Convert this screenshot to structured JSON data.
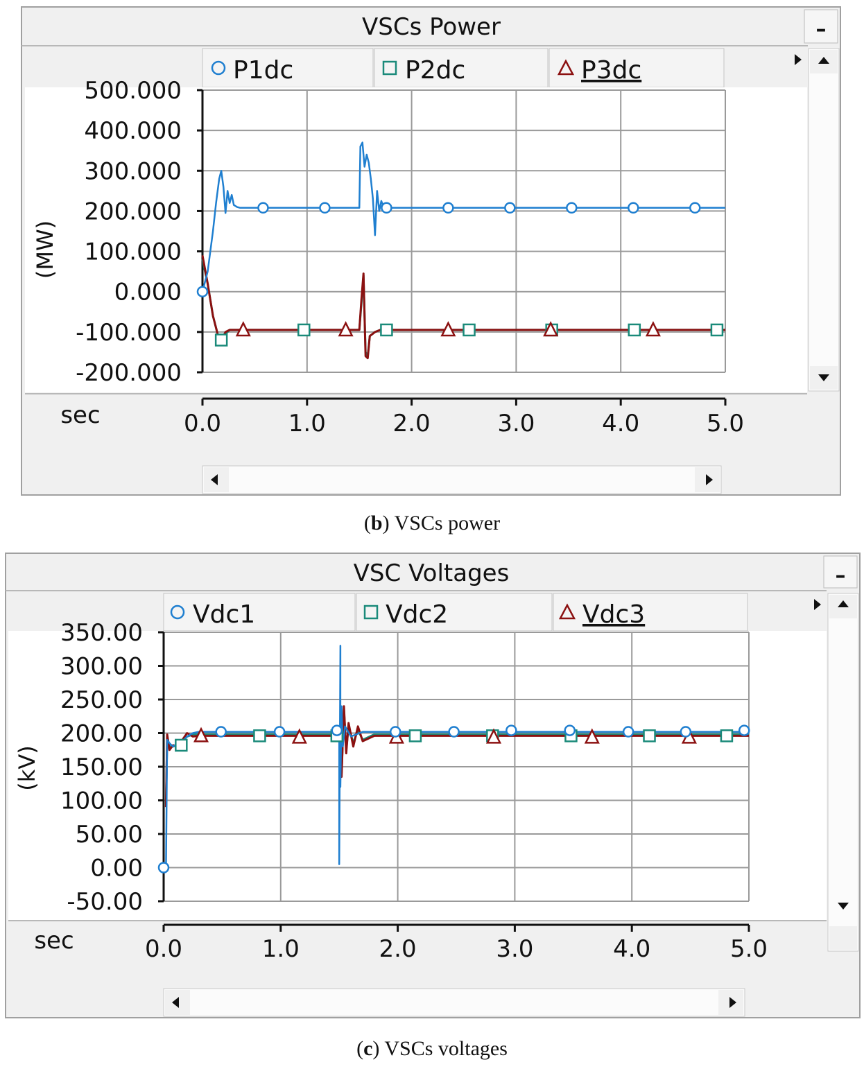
{
  "panels": [
    {
      "title": "VSCs  Power",
      "minimize_label": "–",
      "ylabel": "(MW)",
      "xunit": "sec",
      "caption_letter": "b",
      "caption_text": " VSCs power",
      "legend": [
        {
          "label": "P1dc",
          "marker": "circle",
          "color": "#1f7fd0"
        },
        {
          "label": "P2dc",
          "marker": "square",
          "color": "#1a8a7a"
        },
        {
          "label": "P3dc",
          "marker": "triangle",
          "color": "#8b1010"
        }
      ]
    },
    {
      "title": "VSC Voltages",
      "minimize_label": "–",
      "ylabel": "(kV)",
      "xunit": "sec",
      "caption_letter": "c",
      "caption_text": " VSCs voltages",
      "legend": [
        {
          "label": "Vdc1",
          "marker": "circle",
          "color": "#1f7fd0"
        },
        {
          "label": "Vdc2",
          "marker": "square",
          "color": "#1a8a7a"
        },
        {
          "label": "Vdc3",
          "marker": "triangle",
          "color": "#8b1010"
        }
      ]
    }
  ],
  "chart_data": [
    {
      "type": "line",
      "title": "VSCs  Power",
      "xlabel": "sec",
      "ylabel": "(MW)",
      "xlim": [
        0,
        5
      ],
      "ylim": [
        -200,
        500
      ],
      "xticks": [
        0,
        1,
        2,
        3,
        4,
        5
      ],
      "xtick_labels": [
        "0.0",
        "1.0",
        "2.0",
        "3.0",
        "4.0",
        "5.0"
      ],
      "yticks": [
        500,
        400,
        300,
        200,
        100,
        0,
        -100,
        -200
      ],
      "ytick_labels": [
        "500.000",
        "400.000",
        "300.000",
        "200.000",
        "100.000",
        "0.000",
        "-100.000",
        "-200.000"
      ],
      "grid": true,
      "series": [
        {
          "name": "P1dc",
          "color": "#1f7fd0",
          "marker": "circle",
          "x": [
            0,
            0.05,
            0.1,
            0.13,
            0.16,
            0.18,
            0.2,
            0.22,
            0.24,
            0.26,
            0.28,
            0.3,
            0.33,
            0.36,
            1.5,
            1.51,
            1.53,
            1.55,
            1.57,
            1.59,
            1.61,
            1.63,
            1.65,
            1.67,
            1.69,
            1.71,
            1.74,
            1.78,
            5
          ],
          "y": [
            0,
            50,
            150,
            220,
            280,
            300,
            260,
            195,
            250,
            220,
            240,
            215,
            210,
            208,
            208,
            360,
            370,
            310,
            340,
            320,
            280,
            230,
            140,
            250,
            200,
            225,
            205,
            208,
            208
          ],
          "marker_x": [
            0,
            0.58,
            1.17,
            1.76,
            2.35,
            2.94,
            3.53,
            4.12,
            4.71
          ],
          "marker_y": [
            0,
            208,
            208,
            208,
            208,
            208,
            208,
            208,
            208
          ]
        },
        {
          "name": "P2dc",
          "color": "#1a8a7a",
          "marker": "square",
          "x": [
            0,
            0.05,
            0.1,
            0.15,
            0.18,
            0.22,
            0.26,
            0.3,
            1.5,
            1.52,
            1.54,
            1.56,
            1.58,
            1.6,
            1.65,
            1.7,
            5
          ],
          "y": [
            80,
            20,
            -60,
            -110,
            -125,
            -105,
            -95,
            -95,
            -95,
            -30,
            40,
            -150,
            -160,
            -110,
            -100,
            -95,
            -95
          ],
          "marker_x": [
            0.18,
            0.97,
            1.76,
            2.55,
            3.34,
            4.13,
            4.92
          ],
          "marker_y": [
            -120,
            -95,
            -95,
            -95,
            -95,
            -95,
            -95
          ]
        },
        {
          "name": "P3dc",
          "color": "#8b1010",
          "marker": "triangle",
          "x": [
            0,
            0.05,
            0.1,
            0.15,
            0.18,
            0.22,
            0.26,
            0.3,
            1.5,
            1.52,
            1.54,
            1.56,
            1.58,
            1.6,
            1.65,
            1.7,
            5
          ],
          "y": [
            90,
            20,
            -60,
            -110,
            -120,
            -100,
            -95,
            -95,
            -95,
            -20,
            45,
            -160,
            -165,
            -110,
            -100,
            -95,
            -95
          ],
          "marker_x": [
            0.39,
            1.37,
            2.35,
            3.33,
            4.31
          ],
          "marker_y": [
            -95,
            -95,
            -95,
            -95,
            -95
          ]
        }
      ]
    },
    {
      "type": "line",
      "title": "VSC Voltages",
      "xlabel": "sec",
      "ylabel": "(kV)",
      "xlim": [
        0,
        5
      ],
      "ylim": [
        -50,
        350
      ],
      "xticks": [
        0,
        1,
        2,
        3,
        4,
        5
      ],
      "xtick_labels": [
        "0.0",
        "1.0",
        "2.0",
        "3.0",
        "4.0",
        "5.0"
      ],
      "yticks": [
        350,
        300,
        250,
        200,
        150,
        100,
        50,
        0,
        -50
      ],
      "ytick_labels": [
        "350.00",
        "300.00",
        "250.00",
        "200.00",
        "150.00",
        "100.00",
        "50.00",
        "0.00",
        "-50.00"
      ],
      "grid": true,
      "series": [
        {
          "name": "Vdc1",
          "color": "#1f7fd0",
          "marker": "circle",
          "x": [
            0,
            0.02,
            0.03,
            0.05,
            0.08,
            0.12,
            0.16,
            0.2,
            0.25,
            0.3,
            1.5,
            1.5,
            1.51,
            1.51,
            1.52,
            1.53,
            1.55,
            1.6,
            1.7,
            5
          ],
          "y": [
            0,
            0,
            190,
            185,
            180,
            185,
            188,
            195,
            200,
            202,
            202,
            5,
            330,
            120,
            240,
            180,
            210,
            195,
            202,
            202
          ],
          "marker_x": [
            0,
            0.49,
            0.99,
            1.48,
            1.98,
            2.48,
            2.97,
            3.47,
            3.97,
            4.46,
            4.96
          ],
          "marker_y": [
            0,
            202,
            202,
            204,
            202,
            202,
            204,
            204,
            202,
            202,
            204
          ]
        },
        {
          "name": "Vdc2",
          "color": "#1a8a7a",
          "marker": "square",
          "x": [
            0.02,
            0.03,
            0.05,
            0.08,
            0.12,
            0.16,
            0.2,
            0.25,
            0.3,
            1.5,
            1.52,
            1.54,
            1.56,
            1.58,
            1.62,
            1.66,
            1.7,
            1.8,
            5
          ],
          "y": [
            95,
            195,
            180,
            180,
            183,
            188,
            195,
            198,
            198,
            198,
            140,
            235,
            175,
            210,
            185,
            205,
            190,
            198,
            198
          ],
          "marker_x": [
            0.15,
            0.82,
            1.48,
            2.15,
            2.81,
            3.48,
            4.15,
            4.81
          ],
          "marker_y": [
            182,
            196,
            196,
            196,
            196,
            196,
            196,
            196
          ]
        },
        {
          "name": "Vdc3",
          "color": "#8b1010",
          "marker": "triangle",
          "x": [
            0.02,
            0.03,
            0.05,
            0.08,
            0.12,
            0.16,
            0.2,
            0.25,
            0.3,
            1.5,
            1.52,
            1.54,
            1.56,
            1.58,
            1.62,
            1.66,
            1.7,
            1.8,
            5
          ],
          "y": [
            90,
            198,
            175,
            182,
            180,
            190,
            200,
            195,
            196,
            196,
            135,
            240,
            170,
            215,
            180,
            210,
            188,
            196,
            196
          ],
          "marker_x": [
            0.32,
            1.16,
            1.99,
            2.82,
            3.66,
            4.49
          ],
          "marker_y": [
            196,
            194,
            194,
            194,
            194,
            194
          ]
        }
      ]
    }
  ]
}
